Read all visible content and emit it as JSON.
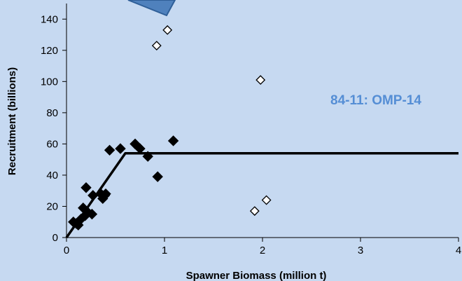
{
  "chart_data": {
    "type": "scatter",
    "xlabel": "Spawner Biomass (million t)",
    "ylabel": "Recruitment (billions)",
    "xlim": [
      0,
      4
    ],
    "ylim": [
      0,
      150
    ],
    "xticks": [
      0,
      1,
      2,
      3,
      4
    ],
    "yticks": [
      0,
      20,
      40,
      60,
      80,
      100,
      120,
      140
    ],
    "xtick_labels": [
      "0",
      "1",
      "2",
      "3",
      "4"
    ],
    "ytick_labels": [
      "0",
      "20",
      "40",
      "60",
      "80",
      "100",
      "120",
      "140"
    ],
    "grid": false,
    "annotation": "84-11: OMP-14",
    "colors": {
      "background": "#c6d9f1",
      "annotation": "#558ed5",
      "decoration": "#4f81bd",
      "decoration_border": "#2f5f98",
      "marker": "#000000"
    },
    "series": [
      {
        "marker": "filled-diamond",
        "points": [
          [
            0.07,
            10
          ],
          [
            0.1,
            9
          ],
          [
            0.12,
            8
          ],
          [
            0.15,
            12
          ],
          [
            0.17,
            19
          ],
          [
            0.19,
            14
          ],
          [
            0.2,
            32
          ],
          [
            0.22,
            16
          ],
          [
            0.26,
            15
          ],
          [
            0.27,
            27
          ],
          [
            0.35,
            28
          ],
          [
            0.37,
            25
          ],
          [
            0.39,
            27
          ],
          [
            0.4,
            28
          ],
          [
            0.44,
            56
          ],
          [
            0.55,
            57
          ],
          [
            0.7,
            60
          ],
          [
            0.75,
            57
          ],
          [
            0.83,
            52
          ],
          [
            0.93,
            39
          ],
          [
            1.09,
            62
          ]
        ]
      },
      {
        "marker": "open-diamond",
        "points": [
          [
            0.92,
            123
          ],
          [
            1.03,
            133
          ],
          [
            1.92,
            17
          ],
          [
            1.98,
            101
          ],
          [
            2.04,
            24
          ]
        ]
      },
      {
        "type": "line",
        "points": [
          [
            0,
            0
          ],
          [
            0.6,
            54
          ],
          [
            4,
            54
          ]
        ]
      }
    ]
  }
}
